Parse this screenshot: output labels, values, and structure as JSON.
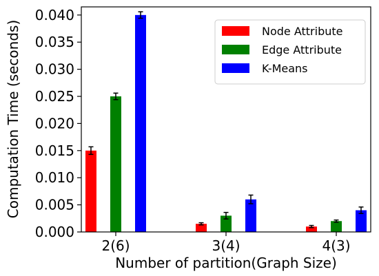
{
  "chart_data": {
    "type": "bar",
    "title": "",
    "xlabel": "Number of partition(Graph Size)",
    "ylabel": "Computation Time (seconds)",
    "categories": [
      "2(6)",
      "3(4)",
      "4(3)"
    ],
    "ylim": [
      0,
      0.0415
    ],
    "yticks": [
      "0.000",
      "0.005",
      "0.010",
      "0.015",
      "0.020",
      "0.025",
      "0.030",
      "0.035",
      "0.040"
    ],
    "grid": false,
    "legend_position": "top-right",
    "series": [
      {
        "name": "Node Attribute",
        "color": "#ff0000",
        "values": [
          0.015,
          0.0015,
          0.001
        ],
        "errors": [
          0.0007,
          0.0002,
          0.0002
        ]
      },
      {
        "name": "Edge Attribute",
        "color": "#008000",
        "values": [
          0.025,
          0.003,
          0.002
        ],
        "errors": [
          0.0006,
          0.0006,
          0.0002
        ]
      },
      {
        "name": "K-Means",
        "color": "#0000ff",
        "values": [
          0.04,
          0.006,
          0.004
        ],
        "errors": [
          0.0006,
          0.0008,
          0.0006
        ]
      }
    ]
  }
}
